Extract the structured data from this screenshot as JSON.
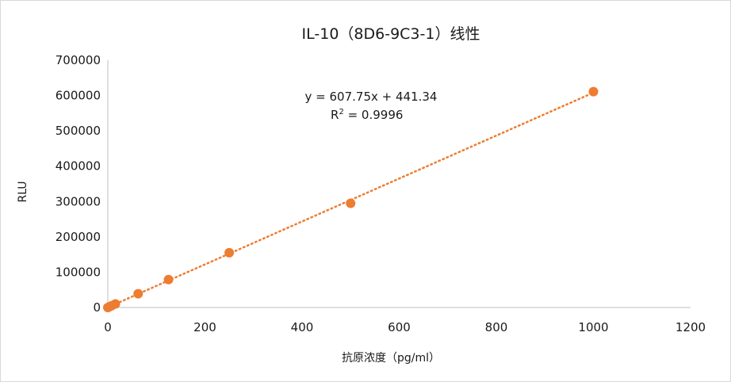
{
  "chart_data": {
    "type": "scatter",
    "title": "IL-10（8D6-9C3-1）线性",
    "xlabel": "抗原浓度（pg/ml）",
    "ylabel": "RLU",
    "xlim": [
      0,
      1200
    ],
    "ylim": [
      0,
      700000
    ],
    "x_ticks": [
      "0",
      "200",
      "400",
      "600",
      "800",
      "1000",
      "1200"
    ],
    "y_ticks": [
      "0",
      "100000",
      "200000",
      "300000",
      "400000",
      "500000",
      "600000",
      "700000"
    ],
    "points": [
      {
        "x": 0,
        "y": 0
      },
      {
        "x": 3.9,
        "y": 2500
      },
      {
        "x": 7.8,
        "y": 5000
      },
      {
        "x": 15.6,
        "y": 10000
      },
      {
        "x": 62.5,
        "y": 39000
      },
      {
        "x": 125,
        "y": 79000
      },
      {
        "x": 250,
        "y": 155000
      },
      {
        "x": 500,
        "y": 295000
      },
      {
        "x": 1000,
        "y": 611000
      }
    ],
    "series_color": "#ED7D31",
    "trendline": {
      "type": "linear",
      "slope": 607.75,
      "intercept": 441.34,
      "style": "dotted",
      "equation_text": "y = 607.75x + 441.34",
      "r2_label": "R",
      "r2_sup": "2",
      "r2_value": " = 0.9996"
    },
    "grid": false,
    "legend": "none"
  }
}
